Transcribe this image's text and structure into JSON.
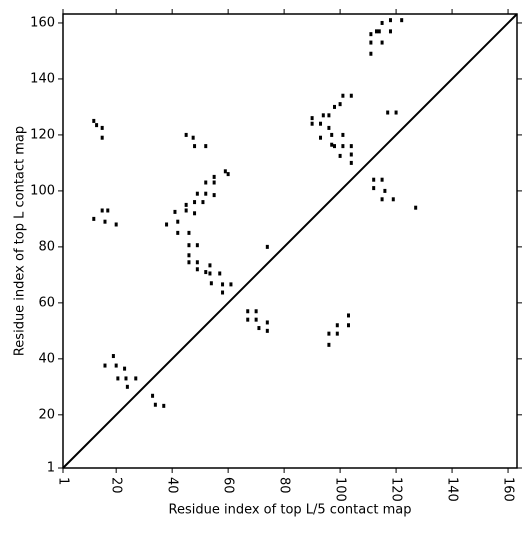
{
  "chart_data": {
    "type": "scatter",
    "xlabel": "Residue index of top L/5 contact map",
    "ylabel": "Residue index of top L contact map",
    "xlim": [
      1,
      163.2
    ],
    "ylim": [
      1,
      163.2
    ],
    "xticks": [
      1,
      20,
      40,
      60,
      80,
      100,
      120,
      140,
      160
    ],
    "yticks": [
      1,
      20,
      40,
      60,
      80,
      100,
      120,
      140,
      160
    ],
    "diagonal": true,
    "series": [
      {
        "color": "#000000",
        "x": [
          111,
          111,
          111,
          114,
          115,
          113,
          115,
          118,
          118,
          122,
          101,
          104,
          100,
          98,
          94,
          96,
          90,
          90,
          93,
          96,
          93,
          97,
          97,
          98,
          101,
          101,
          104,
          100,
          104,
          104,
          117,
          120,
          112,
          115,
          112,
          116,
          115,
          119,
          127,
          103,
          103,
          99,
          99,
          96,
          96,
          67,
          70,
          70,
          67,
          71,
          74,
          74,
          74,
          12,
          13,
          15,
          15,
          12,
          15,
          17,
          16,
          20,
          45,
          47.5,
          48,
          52,
          41,
          45,
          45,
          48,
          49,
          52,
          52,
          55,
          55,
          59,
          60,
          42,
          42,
          38,
          46,
          46,
          49,
          46,
          46,
          49,
          49,
          52,
          53.5,
          53.5,
          57,
          54,
          58,
          61,
          58,
          48,
          51,
          55,
          19,
          16,
          20,
          23,
          20.6,
          23.5,
          27,
          24,
          33,
          34,
          37
        ],
        "y": [
          156,
          153,
          149,
          157,
          153,
          157,
          160,
          161,
          157,
          161,
          134,
          134,
          131,
          130,
          127,
          127,
          126,
          124,
          124,
          122.5,
          119,
          120,
          116.5,
          116,
          120,
          116,
          116,
          112.5,
          113,
          110,
          128,
          128,
          104,
          104,
          101,
          100,
          97,
          97,
          94,
          55.5,
          52,
          52,
          49,
          49,
          45,
          57,
          57,
          54,
          54,
          51,
          53,
          50,
          80,
          125,
          123.5,
          122.5,
          119,
          90,
          93,
          93,
          89,
          88,
          120,
          119,
          116,
          116,
          92.5,
          93,
          95,
          96,
          99,
          99,
          103,
          103,
          105,
          107,
          106,
          89,
          85,
          88,
          85,
          80.6,
          80.6,
          77,
          74.5,
          74.5,
          72,
          71,
          70.5,
          73.4,
          70.5,
          67,
          66.6,
          66.6,
          63.7,
          92,
          96,
          98.5,
          41,
          37.6,
          37.6,
          36.5,
          33,
          33,
          33,
          30,
          26.8,
          23.6,
          23.2
        ]
      }
    ]
  }
}
